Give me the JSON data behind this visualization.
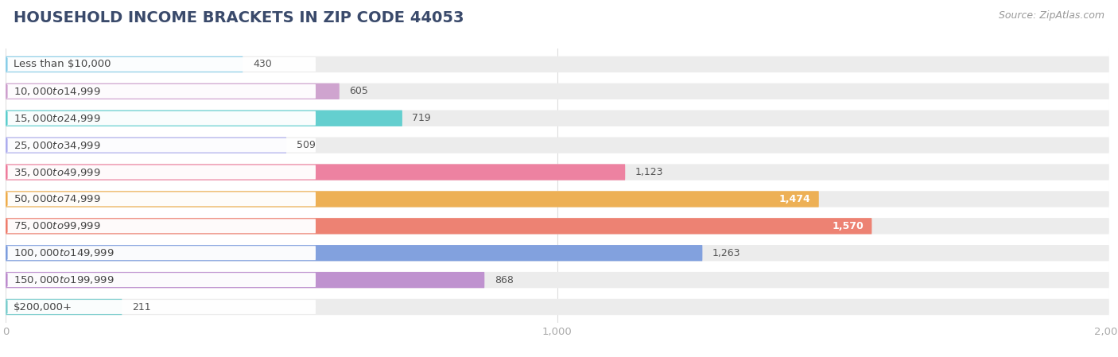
{
  "title": "HOUSEHOLD INCOME BRACKETS IN ZIP CODE 44053",
  "source": "Source: ZipAtlas.com",
  "categories": [
    "Less than $10,000",
    "$10,000 to $14,999",
    "$15,000 to $24,999",
    "$25,000 to $34,999",
    "$35,000 to $49,999",
    "$50,000 to $74,999",
    "$75,000 to $99,999",
    "$100,000 to $149,999",
    "$150,000 to $199,999",
    "$200,000+"
  ],
  "values": [
    430,
    605,
    719,
    509,
    1123,
    1474,
    1570,
    1263,
    868,
    211
  ],
  "bar_colors": [
    "#85cce8",
    "#cc9ccc",
    "#55cccc",
    "#aaaaee",
    "#ee7799",
    "#eeaa44",
    "#ee7766",
    "#7799dd",
    "#bb88cc",
    "#77cccc"
  ],
  "bg_color": "#ffffff",
  "bar_bg_color": "#ececec",
  "label_bg_color": "#ffffff",
  "xlim_max": 2000,
  "title_fontsize": 14,
  "label_fontsize": 9.5,
  "value_fontsize": 9,
  "source_fontsize": 9,
  "title_color": "#3a4a6b",
  "label_color": "#444444",
  "value_color_dark": "#555555",
  "value_color_light": "#ffffff",
  "tick_color": "#aaaaaa"
}
